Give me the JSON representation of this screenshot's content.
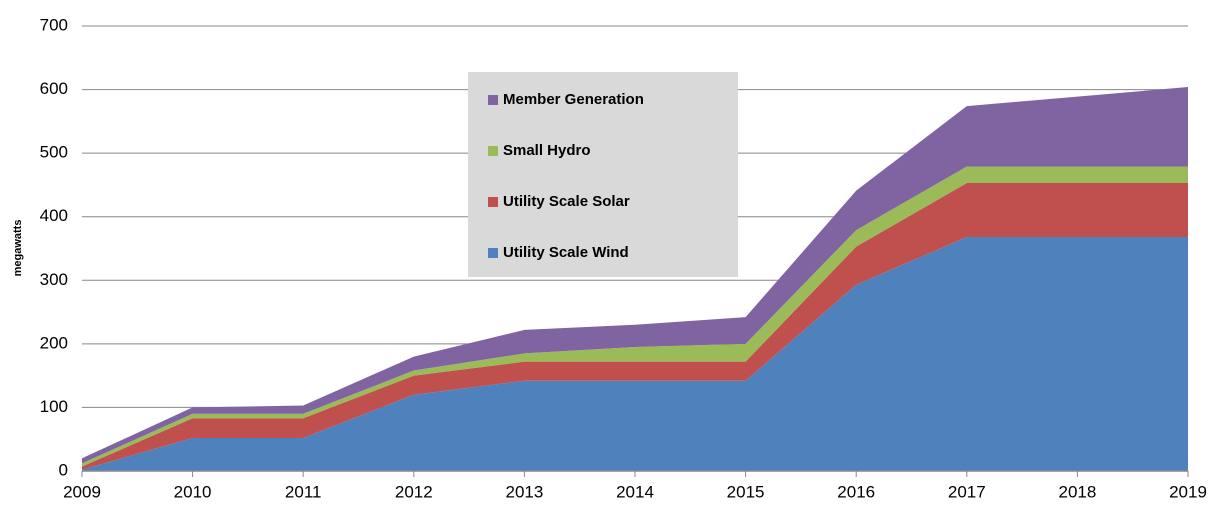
{
  "chart_data": {
    "type": "area",
    "stacked": true,
    "y_label": "megawatts",
    "x": [
      2009,
      2010,
      2011,
      2012,
      2013,
      2014,
      2015,
      2016,
      2017,
      2018,
      2019
    ],
    "xlim": [
      2009,
      2019
    ],
    "xticks": [
      2009,
      2010,
      2011,
      2012,
      2013,
      2014,
      2015,
      2016,
      2017,
      2018,
      2019
    ],
    "ylim": [
      0,
      700
    ],
    "yticks": [
      0,
      100,
      200,
      300,
      400,
      500,
      600,
      700
    ],
    "grid": true,
    "legend": "upper center",
    "series": [
      {
        "name": "Utility Scale Wind",
        "color": "#4f81bd",
        "values": [
          2,
          52,
          52,
          120,
          142,
          142,
          142,
          293,
          368,
          368,
          368
        ]
      },
      {
        "name": "Utility Scale Solar",
        "color": "#c0504d",
        "values": [
          5,
          31,
          31,
          30,
          30,
          30,
          30,
          60,
          85,
          85,
          85
        ]
      },
      {
        "name": "Small Hydro",
        "color": "#9bbb59",
        "values": [
          5,
          7,
          7,
          8,
          13,
          23,
          28,
          26,
          26,
          26,
          26
        ]
      },
      {
        "name": "Member Generation",
        "color": "#8064a2",
        "values": [
          8,
          10,
          13,
          22,
          37,
          35,
          42,
          62,
          95,
          110,
          125
        ]
      }
    ]
  }
}
